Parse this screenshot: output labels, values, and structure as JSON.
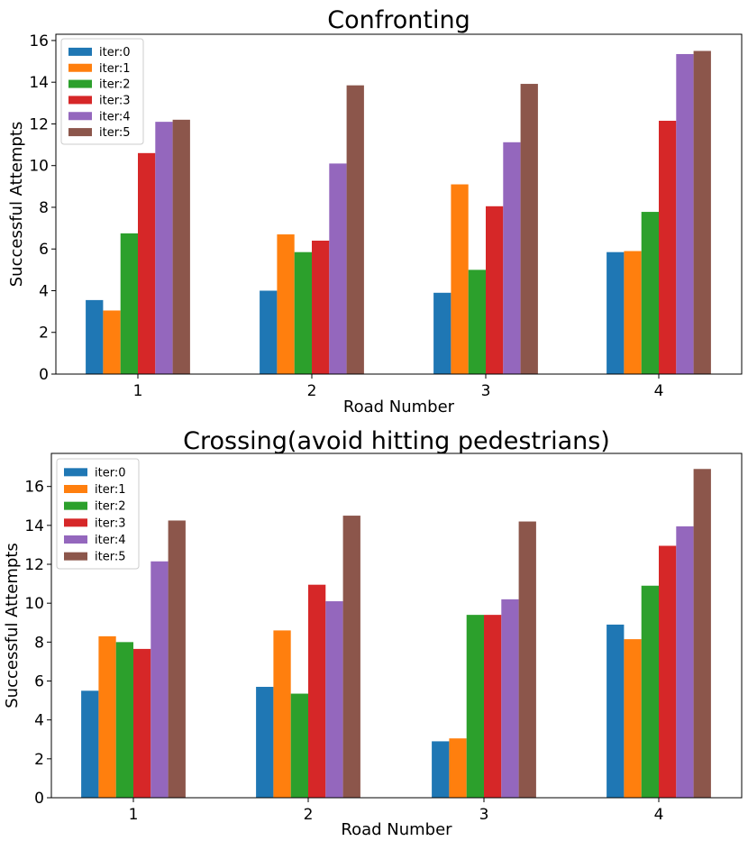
{
  "chart_data": [
    {
      "type": "bar",
      "title": "Confronting",
      "xlabel": "Road Number",
      "ylabel": "Successful Attempts",
      "categories": [
        "1",
        "2",
        "3",
        "4"
      ],
      "ylim": [
        0,
        16.3
      ],
      "yticks": [
        "0",
        "2",
        "4",
        "6",
        "8",
        "10",
        "12",
        "14",
        "16"
      ],
      "legend_position": "top-left",
      "grid": false,
      "series": [
        {
          "name": "iter:0",
          "color": "#1f77b4",
          "values": [
            3.55,
            4.0,
            3.9,
            5.85
          ]
        },
        {
          "name": "iter:1",
          "color": "#ff7f0e",
          "values": [
            3.05,
            6.7,
            9.1,
            5.9
          ]
        },
        {
          "name": "iter:2",
          "color": "#2ca02c",
          "values": [
            6.75,
            5.85,
            5.0,
            7.78
          ]
        },
        {
          "name": "iter:3",
          "color": "#d62728",
          "values": [
            10.6,
            6.4,
            8.05,
            12.15
          ]
        },
        {
          "name": "iter:4",
          "color": "#9467bd",
          "values": [
            12.1,
            10.1,
            11.12,
            15.35
          ]
        },
        {
          "name": "iter:5",
          "color": "#8c564b",
          "values": [
            12.2,
            13.85,
            13.92,
            15.5
          ]
        }
      ]
    },
    {
      "type": "bar",
      "title": "Crossing(avoid hitting pedestrians)",
      "xlabel": "Road Number",
      "ylabel": "Successful Attempts",
      "categories": [
        "1",
        "2",
        "3",
        "4"
      ],
      "ylim": [
        0,
        17.7
      ],
      "yticks": [
        "0",
        "2",
        "4",
        "6",
        "8",
        "10",
        "12",
        "14",
        "16"
      ],
      "legend_position": "top-left",
      "grid": false,
      "series": [
        {
          "name": "iter:0",
          "color": "#1f77b4",
          "values": [
            5.5,
            5.7,
            2.9,
            8.9
          ]
        },
        {
          "name": "iter:1",
          "color": "#ff7f0e",
          "values": [
            8.3,
            8.6,
            3.05,
            8.15
          ]
        },
        {
          "name": "iter:2",
          "color": "#2ca02c",
          "values": [
            8.0,
            5.35,
            9.4,
            10.9
          ]
        },
        {
          "name": "iter:3",
          "color": "#d62728",
          "values": [
            7.65,
            10.95,
            9.4,
            12.95
          ]
        },
        {
          "name": "iter:4",
          "color": "#9467bd",
          "values": [
            12.15,
            10.1,
            10.2,
            13.95
          ]
        },
        {
          "name": "iter:5",
          "color": "#8c564b",
          "values": [
            14.25,
            14.5,
            14.2,
            16.9
          ]
        }
      ]
    }
  ]
}
